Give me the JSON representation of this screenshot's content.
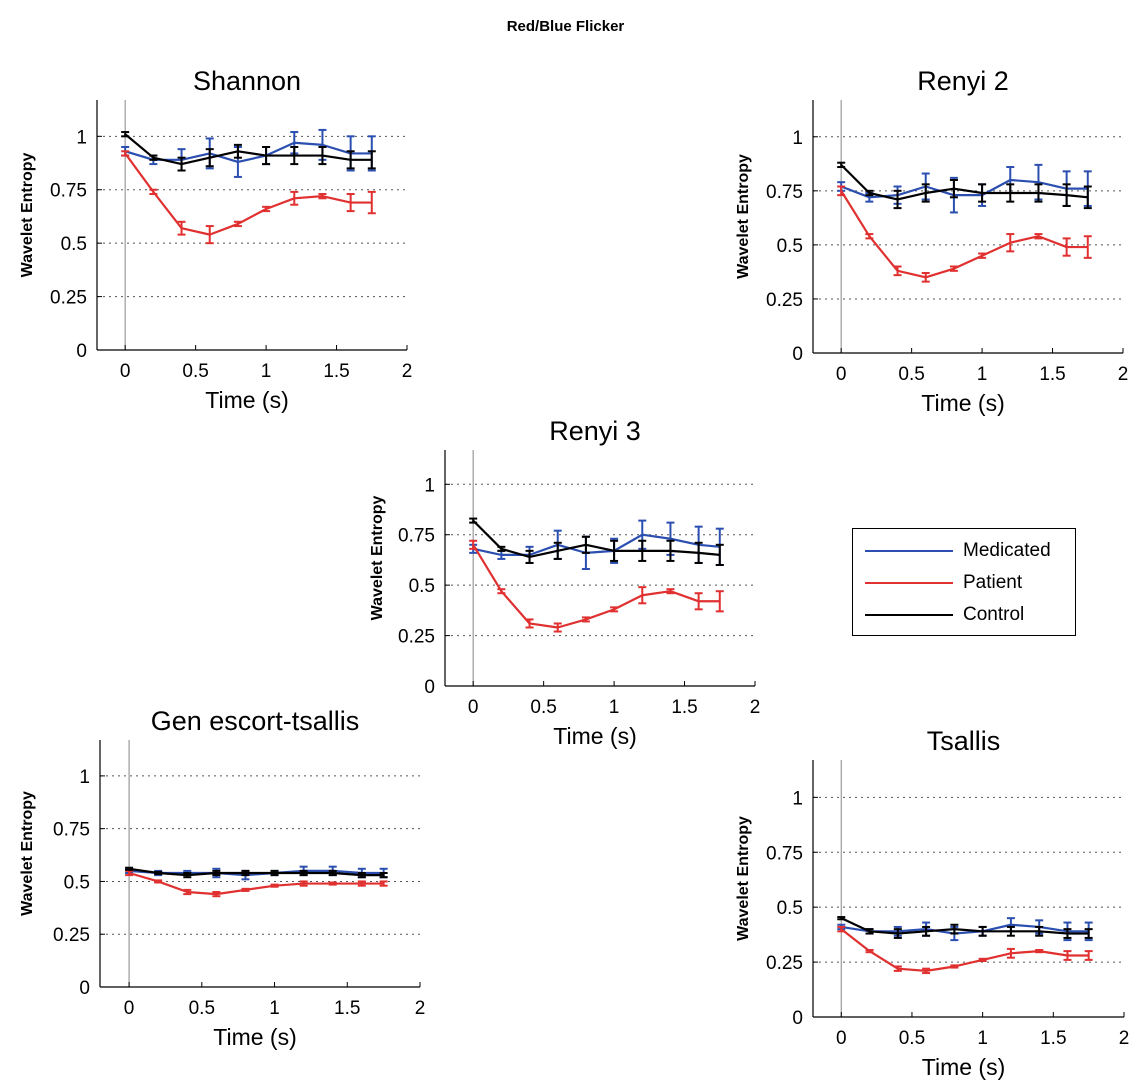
{
  "figure": {
    "title": "Red/Blue Flicker"
  },
  "legend": [
    {
      "name": "Medicated",
      "color": "#2b4fb0"
    },
    {
      "name": "Patient",
      "color": "#e03030"
    },
    {
      "name": "Control",
      "color": "#000000"
    }
  ],
  "chart_data": [
    {
      "type": "line",
      "title": "Shannon",
      "xlabel": "Time (s)",
      "ylabel": "Wavelet Entropy",
      "xlim": [
        -0.2,
        2
      ],
      "ylim": [
        0,
        1.17
      ],
      "xticks": [
        "0",
        "0.5",
        "1",
        "1.5",
        "2"
      ],
      "yticks": [
        "0",
        "0.25",
        "0.5",
        "0.75",
        "1"
      ],
      "grid": "horizontal dotted",
      "x": [
        0,
        0.2,
        0.4,
        0.6,
        0.8,
        1.0,
        1.2,
        1.4,
        1.6,
        1.75
      ],
      "series": [
        {
          "name": "Medicated",
          "values": [
            0.93,
            0.89,
            0.89,
            0.92,
            0.88,
            0.91,
            0.97,
            0.96,
            0.92,
            0.92
          ],
          "errors": [
            0.02,
            0.02,
            0.05,
            0.07,
            0.07,
            0.04,
            0.05,
            0.07,
            0.08,
            0.08
          ]
        },
        {
          "name": "Patient",
          "values": [
            0.92,
            0.74,
            0.57,
            0.54,
            0.59,
            0.66,
            0.71,
            0.72,
            0.69,
            0.69
          ],
          "errors": [
            0.01,
            0.01,
            0.03,
            0.04,
            0.01,
            0.01,
            0.03,
            0.01,
            0.04,
            0.05
          ]
        },
        {
          "name": "Control",
          "values": [
            1.01,
            0.9,
            0.87,
            0.9,
            0.93,
            0.91,
            0.91,
            0.91,
            0.89,
            0.89
          ],
          "errors": [
            0.01,
            0.01,
            0.03,
            0.04,
            0.03,
            0.04,
            0.04,
            0.04,
            0.04,
            0.04
          ]
        }
      ]
    },
    {
      "type": "line",
      "title": "Renyi 2",
      "xlabel": "Time (s)",
      "ylabel": "Wavelet Entropy",
      "xlim": [
        -0.2,
        2
      ],
      "ylim": [
        0,
        1.17
      ],
      "xticks": [
        "0",
        "0.5",
        "1",
        "1.5",
        "2"
      ],
      "yticks": [
        "0",
        "0.25",
        "0.5",
        "0.75",
        "1"
      ],
      "grid": "horizontal dotted",
      "x": [
        0,
        0.2,
        0.4,
        0.6,
        0.8,
        1.0,
        1.2,
        1.4,
        1.6,
        1.75
      ],
      "series": [
        {
          "name": "Medicated",
          "values": [
            0.77,
            0.72,
            0.73,
            0.77,
            0.73,
            0.73,
            0.8,
            0.79,
            0.76,
            0.76
          ],
          "errors": [
            0.02,
            0.02,
            0.04,
            0.06,
            0.08,
            0.05,
            0.06,
            0.08,
            0.08,
            0.08
          ]
        },
        {
          "name": "Patient",
          "values": [
            0.75,
            0.54,
            0.38,
            0.35,
            0.39,
            0.45,
            0.51,
            0.54,
            0.49,
            0.49
          ],
          "errors": [
            0.02,
            0.01,
            0.02,
            0.02,
            0.01,
            0.01,
            0.04,
            0.01,
            0.04,
            0.05
          ]
        },
        {
          "name": "Control",
          "values": [
            0.87,
            0.74,
            0.71,
            0.74,
            0.76,
            0.74,
            0.74,
            0.74,
            0.73,
            0.72
          ],
          "errors": [
            0.01,
            0.01,
            0.04,
            0.04,
            0.04,
            0.04,
            0.04,
            0.04,
            0.05,
            0.05
          ]
        }
      ]
    },
    {
      "type": "line",
      "title": "Renyi 3",
      "xlabel": "Time (s)",
      "ylabel": "Wavelet Entropy",
      "xlim": [
        -0.2,
        2
      ],
      "ylim": [
        0,
        1.17
      ],
      "xticks": [
        "0",
        "0.5",
        "1",
        "1.5",
        "2"
      ],
      "yticks": [
        "0",
        "0.25",
        "0.5",
        "0.75",
        "1"
      ],
      "grid": "horizontal dotted",
      "x": [
        0,
        0.2,
        0.4,
        0.6,
        0.8,
        1.0,
        1.2,
        1.4,
        1.6,
        1.75
      ],
      "series": [
        {
          "name": "Medicated",
          "values": [
            0.68,
            0.65,
            0.65,
            0.7,
            0.66,
            0.67,
            0.75,
            0.73,
            0.7,
            0.69
          ],
          "errors": [
            0.02,
            0.02,
            0.04,
            0.07,
            0.08,
            0.06,
            0.07,
            0.08,
            0.09,
            0.09
          ]
        },
        {
          "name": "Patient",
          "values": [
            0.7,
            0.47,
            0.31,
            0.29,
            0.33,
            0.38,
            0.45,
            0.47,
            0.42,
            0.42
          ],
          "errors": [
            0.02,
            0.01,
            0.02,
            0.02,
            0.01,
            0.01,
            0.04,
            0.01,
            0.04,
            0.05
          ]
        },
        {
          "name": "Control",
          "values": [
            0.82,
            0.68,
            0.64,
            0.67,
            0.7,
            0.67,
            0.67,
            0.67,
            0.66,
            0.65
          ],
          "errors": [
            0.01,
            0.01,
            0.03,
            0.04,
            0.04,
            0.05,
            0.05,
            0.05,
            0.05,
            0.05
          ]
        }
      ]
    },
    {
      "type": "line",
      "title": "Gen escort-tsallis",
      "xlabel": "Time (s)",
      "ylabel": "Wavelet Entropy",
      "xlim": [
        -0.2,
        2
      ],
      "ylim": [
        0,
        1.17
      ],
      "xticks": [
        "0",
        "0.5",
        "1",
        "1.5",
        "2"
      ],
      "yticks": [
        "0",
        "0.25",
        "0.5",
        "0.75",
        "1"
      ],
      "grid": "horizontal dotted",
      "x": [
        0,
        0.2,
        0.4,
        0.6,
        0.8,
        1.0,
        1.2,
        1.4,
        1.6,
        1.75
      ],
      "series": [
        {
          "name": "Medicated",
          "values": [
            0.55,
            0.54,
            0.54,
            0.54,
            0.53,
            0.54,
            0.55,
            0.55,
            0.54,
            0.54
          ],
          "errors": [
            0.01,
            0.01,
            0.01,
            0.02,
            0.02,
            0.01,
            0.02,
            0.02,
            0.02,
            0.02
          ]
        },
        {
          "name": "Patient",
          "values": [
            0.54,
            0.5,
            0.45,
            0.44,
            0.46,
            0.48,
            0.49,
            0.49,
            0.49,
            0.49
          ],
          "errors": [
            0.01,
            0.005,
            0.01,
            0.01,
            0.005,
            0.005,
            0.01,
            0.005,
            0.01,
            0.01
          ]
        },
        {
          "name": "Control",
          "values": [
            0.56,
            0.54,
            0.53,
            0.54,
            0.54,
            0.54,
            0.54,
            0.54,
            0.53,
            0.53
          ],
          "errors": [
            0.005,
            0.005,
            0.01,
            0.01,
            0.01,
            0.01,
            0.01,
            0.01,
            0.01,
            0.01
          ]
        }
      ]
    },
    {
      "type": "line",
      "title": "Tsallis",
      "xlabel": "Time (s)",
      "ylabel": "Wavelet Entropy",
      "xlim": [
        -0.2,
        2
      ],
      "ylim": [
        0,
        1.17
      ],
      "xticks": [
        "0",
        "0.5",
        "1",
        "1.5",
        "2"
      ],
      "yticks": [
        "0",
        "0.25",
        "0.5",
        "0.75",
        "1"
      ],
      "grid": "horizontal dotted",
      "x": [
        0,
        0.2,
        0.4,
        0.6,
        0.8,
        1.0,
        1.2,
        1.4,
        1.6,
        1.75
      ],
      "series": [
        {
          "name": "Medicated",
          "values": [
            0.41,
            0.39,
            0.39,
            0.4,
            0.38,
            0.39,
            0.42,
            0.41,
            0.39,
            0.39
          ],
          "errors": [
            0.01,
            0.01,
            0.02,
            0.03,
            0.03,
            0.02,
            0.03,
            0.03,
            0.04,
            0.04
          ]
        },
        {
          "name": "Patient",
          "values": [
            0.4,
            0.3,
            0.22,
            0.21,
            0.23,
            0.26,
            0.29,
            0.3,
            0.28,
            0.28
          ],
          "errors": [
            0.01,
            0.005,
            0.01,
            0.01,
            0.005,
            0.005,
            0.02,
            0.005,
            0.02,
            0.02
          ]
        },
        {
          "name": "Control",
          "values": [
            0.45,
            0.39,
            0.38,
            0.39,
            0.4,
            0.39,
            0.39,
            0.39,
            0.38,
            0.38
          ],
          "errors": [
            0.005,
            0.01,
            0.02,
            0.02,
            0.02,
            0.02,
            0.02,
            0.02,
            0.02,
            0.02
          ]
        }
      ]
    }
  ]
}
